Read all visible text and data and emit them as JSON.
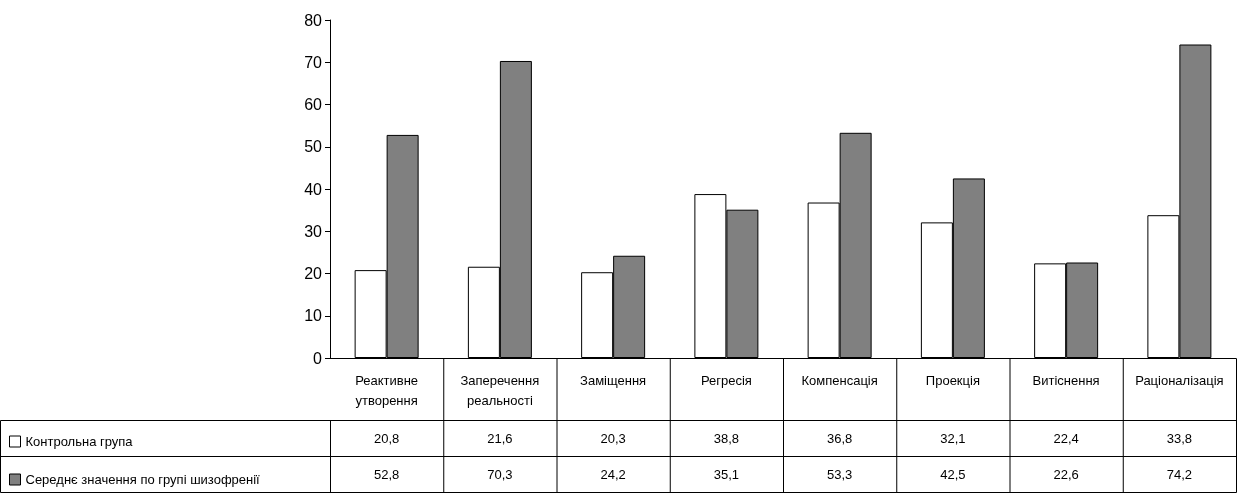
{
  "chart_data": {
    "type": "bar",
    "categories": [
      "Реактивне утворення",
      "Заперечення реальності",
      "Заміщення",
      "Регресія",
      "Компенсація",
      "Проекція",
      "Витіснення",
      "Раціоналізація"
    ],
    "series": [
      {
        "name": "Контрольна група",
        "color": "#ffffff",
        "values": [
          20.8,
          21.6,
          20.3,
          38.8,
          36.8,
          32.1,
          22.4,
          33.8
        ],
        "value_labels": [
          "20,8",
          "21,6",
          "20,3",
          "38,8",
          "36,8",
          "32,1",
          "22,4",
          "33,8"
        ]
      },
      {
        "name": "Середнє значення по групі шизофренії",
        "color": "#808080",
        "values": [
          52.8,
          70.3,
          24.2,
          35.1,
          53.3,
          42.5,
          22.6,
          74.2
        ],
        "value_labels": [
          "52,8",
          "70,3",
          "24,2",
          "35,1",
          "53,3",
          "42,5",
          "22,6",
          "74,2"
        ]
      }
    ],
    "ylim": [
      0,
      80
    ],
    "yticks": [
      0,
      10,
      20,
      30,
      40,
      50,
      60,
      70,
      80
    ],
    "grid": false,
    "legend": "bottom left"
  }
}
